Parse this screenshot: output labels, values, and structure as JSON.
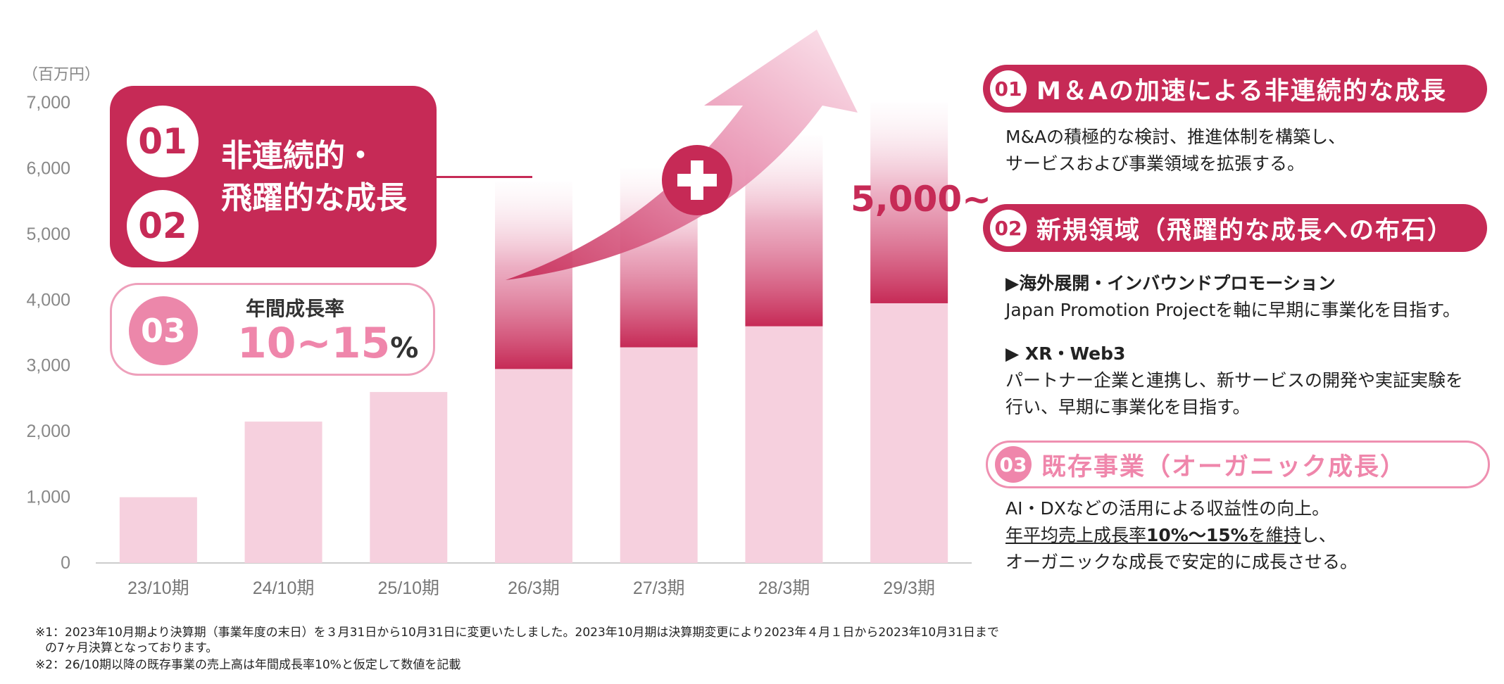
{
  "chart_data": {
    "type": "bar",
    "categories": [
      "23/10期",
      "24/10期",
      "25/10期",
      "26/3期",
      "27/3期",
      "28/3期",
      "29/3期"
    ],
    "series": [
      {
        "values": [
          1000,
          2150,
          2600,
          2950,
          3280,
          3600,
          3950
        ]
      },
      {
        "values": [
          0,
          0,
          0,
          2850,
          2720,
          2900,
          3050
        ]
      }
    ],
    "y_unit": "（百万円）",
    "yticks": [
      "0",
      "1,000",
      "2,000",
      "3,000",
      "4,000",
      "5,000",
      "6,000",
      "7,000"
    ],
    "ylim": [
      0,
      7000
    ],
    "target_label": "5,000~",
    "colors": {
      "organic": "#f6d0de",
      "inorganic": "#c62a56",
      "accent": "#c62a56",
      "pink": "#ef86ab"
    }
  },
  "growth_box": {
    "num1": "01",
    "num2": "02",
    "title_line1": "非連続的・",
    "title_line2": "飛躍的な成長"
  },
  "rate_box": {
    "num": "03",
    "label": "年間成長率",
    "value": "10~15",
    "unit": "%"
  },
  "plus_icon": "plus-icon",
  "sections": {
    "s1": {
      "num": "01",
      "title": "M＆Aの加速による非連続的な成長",
      "line1": "M&Aの積極的な検討、推進体制を構築し、",
      "line2": "サービスおよび事業領域を拡張する。"
    },
    "s2": {
      "num": "02",
      "title": "新規領域（飛躍的な成長への布石）",
      "sub1_title": "▶海外展開・インバウンドプロモーション",
      "sub1_line": "Japan  Promotion Projectを軸に早期に事業化を目指す。",
      "sub2_title": "▶ XR・Web3",
      "sub2_line1": "パートナー企業と連携し、新サービスの開発や実証実験を",
      "sub2_line2": "行い、早期に事業化を目指す。"
    },
    "s3": {
      "num": "03",
      "title": "既存事業（オーガニック成長）",
      "line1": "AI・DXなどの活用による収益性の向上。",
      "line2_a": "年平均売上成長率",
      "line2_b": "10%～15%",
      "line2_c": "を維持",
      "line2_d": "し、",
      "line3": "オーガニックな成長で安定的に成長させる。"
    }
  },
  "notes": {
    "n1": "※1：2023年10月期より決算期（事業年度の末日）を３月31日から10月31日に変更いたしました。2023年10月期は決算期変更により2023年４月１日から2023年10月31日まで",
    "n1b": "の7ヶ月決算となっております。",
    "n2": "※2：26/10期以降の既存事業の売上高は年間成長率10%と仮定して数値を記載"
  }
}
